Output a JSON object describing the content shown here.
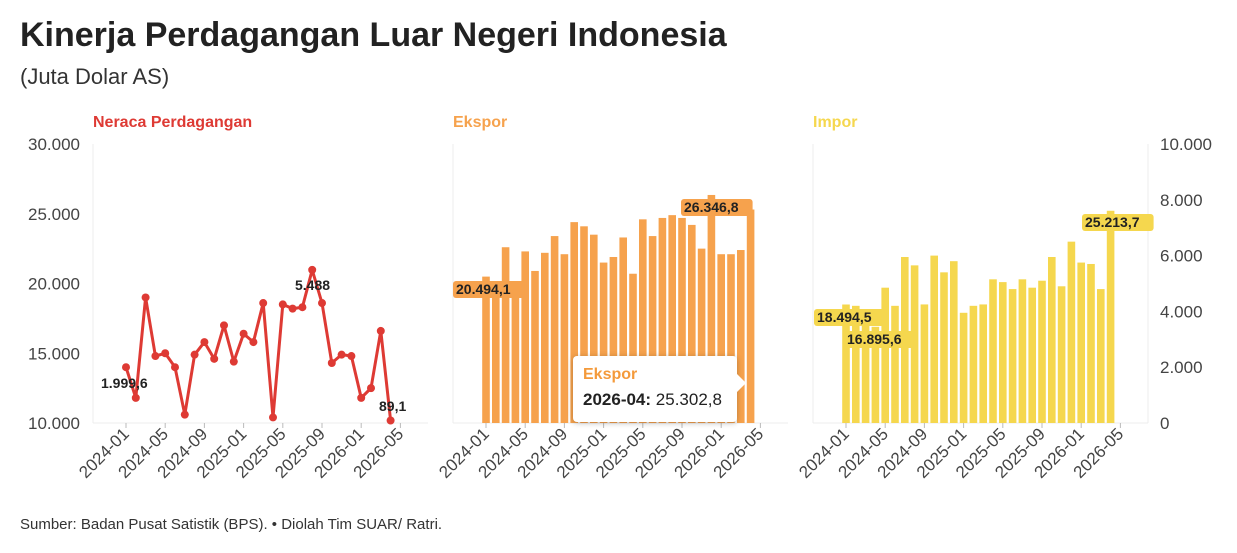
{
  "title": "Kinerja Perdagangan Luar Negeri Indonesia",
  "subtitle": "(Juta Dolar AS)",
  "source": "Sumber: Badan Pusat Satistik (BPS). • Diolah Tim SUAR/ Ratri.",
  "colors": {
    "neraca": "#de3a34",
    "ekspor": "#f6a24d",
    "impor": "#f5d74e"
  },
  "tooltip": {
    "title": "Ekspor",
    "key": "2026-04:",
    "value": "25.302,8"
  },
  "chart_data": [
    {
      "type": "line",
      "title": "Neraca Perdagangan",
      "x": [
        "2024-01",
        "2024-02",
        "2024-03",
        "2024-04",
        "2024-05",
        "2024-06",
        "2024-07",
        "2024-08",
        "2024-09",
        "2024-10",
        "2024-11",
        "2024-12",
        "2025-01",
        "2025-02",
        "2025-03",
        "2025-04",
        "2025-05",
        "2025-06",
        "2025-07",
        "2025-08",
        "2025-09",
        "2025-10",
        "2025-11",
        "2025-12",
        "2026-01",
        "2026-02",
        "2026-03",
        "2026-04",
        "2026-05"
      ],
      "values": [
        2000,
        900,
        4500,
        2400,
        2500,
        2000,
        300,
        2450,
        2900,
        2300,
        3500,
        2200,
        3200,
        2900,
        4300,
        200,
        4250,
        4100,
        4150,
        5488,
        4300,
        2150,
        2450,
        2400,
        900,
        1250,
        3300,
        89.1,
        null
      ],
      "ylim": [
        0,
        10000
      ],
      "right_axis_ticks": [
        0,
        2000,
        4000,
        6000,
        8000,
        10000
      ],
      "right_axis_labels": [
        "0",
        "2.000",
        "4.000",
        "6.000",
        "8.000",
        "10.000"
      ],
      "x_tick_labels": [
        "2024-01",
        "2024-05",
        "2024-09",
        "2025-01",
        "2025-05",
        "2025-09",
        "2026-01",
        "2026-05"
      ],
      "annotations": [
        "1.999,6",
        "5.488",
        "89,1"
      ]
    },
    {
      "type": "bar",
      "title": "Ekspor",
      "x": [
        "2024-01",
        "2024-02",
        "2024-03",
        "2024-04",
        "2024-05",
        "2024-06",
        "2024-07",
        "2024-08",
        "2024-09",
        "2024-10",
        "2024-11",
        "2024-12",
        "2025-01",
        "2025-02",
        "2025-03",
        "2025-04",
        "2025-05",
        "2025-06",
        "2025-07",
        "2025-08",
        "2025-09",
        "2025-10",
        "2025-11",
        "2025-12",
        "2026-01",
        "2026-02",
        "2026-03",
        "2026-04",
        "2026-05"
      ],
      "values": [
        20494.1,
        19400,
        22600,
        19600,
        22300,
        20900,
        22200,
        23400,
        22100,
        24400,
        24100,
        23500,
        21500,
        21900,
        23300,
        20700,
        24600,
        23400,
        24700,
        24900,
        24700,
        24200,
        22500,
        26346.8,
        22100,
        22100,
        22400,
        25302.8,
        null
      ],
      "ylim": [
        10000,
        30000
      ],
      "left_axis_ticks": [
        10000,
        15000,
        20000,
        25000,
        30000
      ],
      "left_axis_labels": [
        "10.000",
        "15.000",
        "20.000",
        "25.000",
        "30.000"
      ],
      "x_tick_labels": [
        "2024-01",
        "2024-05",
        "2024-09",
        "2025-01",
        "2025-05",
        "2025-09",
        "2026-01",
        "2026-05"
      ],
      "annotations": [
        "20.494,1",
        "26.346,8"
      ]
    },
    {
      "type": "bar",
      "title": "Impor",
      "x": [
        "2024-01",
        "2024-02",
        "2024-03",
        "2024-04",
        "2024-05",
        "2024-06",
        "2024-07",
        "2024-08",
        "2024-09",
        "2024-10",
        "2024-11",
        "2024-12",
        "2025-01",
        "2025-02",
        "2025-03",
        "2025-04",
        "2025-05",
        "2025-06",
        "2025-07",
        "2025-08",
        "2025-09",
        "2025-10",
        "2025-11",
        "2025-12",
        "2026-01",
        "2026-02",
        "2026-03",
        "2026-04",
        "2026-05"
      ],
      "values": [
        18494.5,
        18400,
        18000,
        16895.6,
        19700,
        18400,
        21900,
        21300,
        18500,
        22000,
        20800,
        21600,
        17900,
        18400,
        18500,
        20300,
        20100,
        19600,
        20300,
        19700,
        20200,
        21900,
        19800,
        23000,
        21500,
        21400,
        19600,
        25213.7,
        null
      ],
      "ylim": [
        10000,
        30000
      ],
      "x_tick_labels": [
        "2024-01",
        "2024-05",
        "2024-09",
        "2025-01",
        "2025-05",
        "2025-09",
        "2026-01",
        "2026-05"
      ],
      "annotations": [
        "18.494,5",
        "16.895,6",
        "25.213,7"
      ]
    }
  ]
}
